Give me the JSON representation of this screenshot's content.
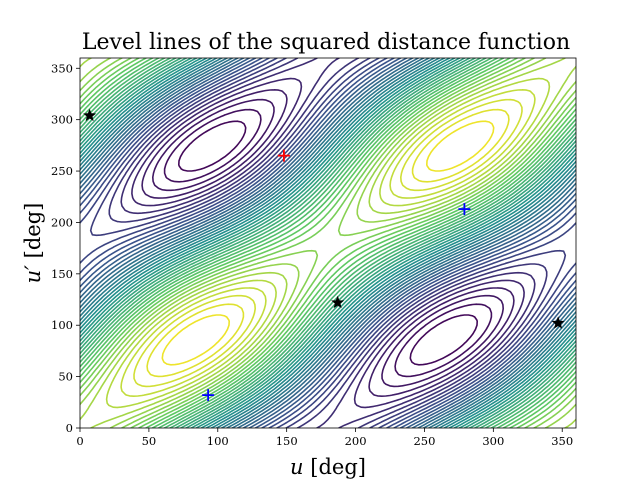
{
  "chart_data": {
    "type": "contour",
    "title": "Level lines of the squared distance function",
    "xlabel": {
      "var": "u",
      "unit": "[deg]"
    },
    "ylabel": {
      "var": "u′",
      "unit": "[deg]"
    },
    "xlim": [
      0,
      360
    ],
    "ylim": [
      0,
      360
    ],
    "xticks": [
      0,
      50,
      100,
      150,
      200,
      250,
      300,
      350
    ],
    "yticks": [
      0,
      50,
      100,
      150,
      200,
      250,
      300,
      350
    ],
    "grid": false,
    "colormap": [
      "#440154",
      "#3b528b",
      "#21918c",
      "#5ec962",
      "#fde725"
    ],
    "red_cross": [
      {
        "x": 148,
        "y": 265,
        "color": "#ff0000"
      }
    ],
    "blue_crosses": [
      {
        "x": 93,
        "y": 32,
        "color": "#0000ff"
      },
      {
        "x": 279,
        "y": 213,
        "color": "#0000ff"
      }
    ],
    "black_stars": [
      {
        "x": 7,
        "y": 304,
        "color": "#000000"
      },
      {
        "x": 187,
        "y": 122,
        "color": "#000000"
      },
      {
        "x": 347,
        "y": 102,
        "color": "#000000"
      }
    ]
  }
}
